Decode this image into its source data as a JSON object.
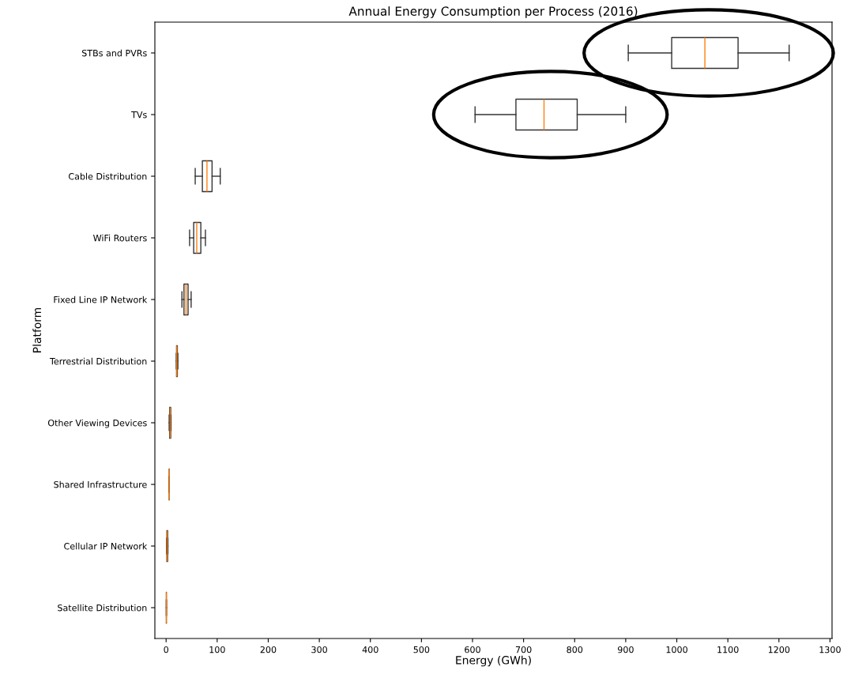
{
  "chart_data": {
    "type": "box",
    "orientation": "horizontal",
    "title": "Annual Energy Consumption per Process (2016)",
    "xlabel": "Energy (GWh)",
    "ylabel": "Platform",
    "categories": [
      "STBs and PVRs",
      "TVs",
      "Cable Distribution",
      "WiFi Routers",
      "Fixed Line IP Network",
      "Terrestrial Distribution",
      "Other Viewing Devices",
      "Shared Infrastructure",
      "Cellular IP Network",
      "Satellite Distribution"
    ],
    "boxes": [
      {
        "low": 905,
        "q1": 990,
        "median": 1055,
        "q3": 1120,
        "high": 1220
      },
      {
        "low": 605,
        "q1": 685,
        "median": 740,
        "q3": 805,
        "high": 900
      },
      {
        "low": 57,
        "q1": 71,
        "median": 80,
        "q3": 90,
        "high": 106
      },
      {
        "low": 46,
        "q1": 54,
        "median": 60,
        "q3": 68,
        "high": 77
      },
      {
        "low": 31,
        "q1": 35,
        "median": 39,
        "q3": 43,
        "high": 49
      },
      {
        "low": 20,
        "q1": 20.5,
        "median": 21,
        "q3": 22,
        "high": 23
      },
      {
        "low": 6,
        "q1": 7,
        "median": 8,
        "q3": 9,
        "high": 9.5
      },
      {
        "low": 6,
        "q1": 6,
        "median": 6,
        "q3": 6,
        "high": 6
      },
      {
        "low": 1,
        "q1": 1.5,
        "median": 2,
        "q3": 3,
        "high": 3.5
      },
      {
        "low": 0.5,
        "q1": 0.5,
        "median": 0.5,
        "q3": 0.5,
        "high": 0.5
      }
    ],
    "xlim": [
      -22,
      1304
    ],
    "xticks": [
      0,
      100,
      200,
      300,
      400,
      500,
      600,
      700,
      800,
      900,
      1000,
      1100,
      1200,
      1300
    ],
    "grid": false,
    "legend": false
  }
}
